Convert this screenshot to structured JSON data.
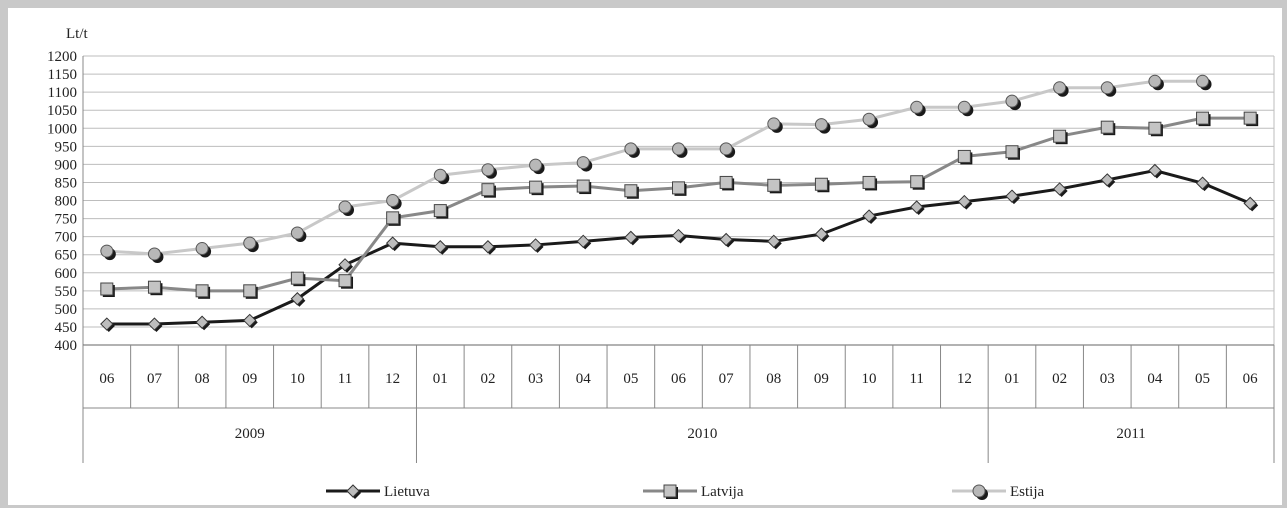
{
  "chart_data": {
    "type": "line",
    "ylabel": "Lt/t",
    "ylim": [
      400,
      1200
    ],
    "ystep": 50,
    "grid": true,
    "legend_position": "bottom",
    "x_months": [
      "06",
      "07",
      "08",
      "09",
      "10",
      "11",
      "12",
      "01",
      "02",
      "03",
      "04",
      "05",
      "06",
      "07",
      "08",
      "09",
      "10",
      "11",
      "12",
      "01",
      "02",
      "03",
      "04",
      "05",
      "06"
    ],
    "x_years": [
      {
        "label": "2009",
        "start": 0,
        "end": 6
      },
      {
        "label": "2010",
        "start": 7,
        "end": 18
      },
      {
        "label": "2011",
        "start": 19,
        "end": 24
      }
    ],
    "series": [
      {
        "name": "Lietuva",
        "color": "#1a1a1a",
        "marker": "diamond",
        "values": [
          458,
          458,
          463,
          468,
          528,
          622,
          682,
          672,
          672,
          677,
          687,
          698,
          703,
          692,
          687,
          707,
          757,
          782,
          797,
          812,
          832,
          857,
          883,
          848,
          792
        ]
      },
      {
        "name": "Latvija",
        "color": "#888888",
        "marker": "square",
        "values": [
          555,
          560,
          550,
          550,
          585,
          578,
          752,
          772,
          830,
          837,
          840,
          827,
          835,
          850,
          842,
          845,
          850,
          852,
          922,
          935,
          978,
          1003,
          1000,
          1028,
          1028
        ]
      },
      {
        "name": "Estija",
        "color": "#c8c8c8",
        "marker": "circle",
        "values": [
          660,
          652,
          667,
          682,
          710,
          782,
          800,
          870,
          885,
          898,
          905,
          943,
          943,
          943,
          1012,
          1010,
          1025,
          1058,
          1058,
          1075,
          1112,
          1112,
          1130,
          1130,
          null
        ]
      }
    ]
  }
}
